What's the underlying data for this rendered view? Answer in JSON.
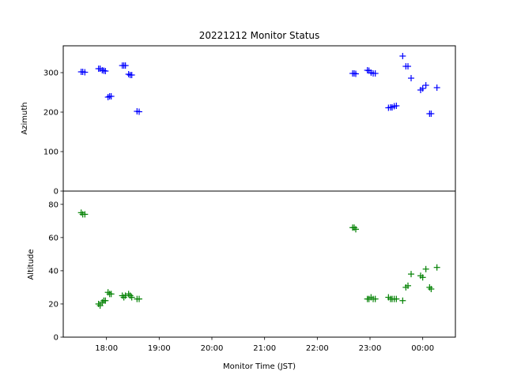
{
  "chart_data": {
    "type": "scatter",
    "title": "20221212 Monitor Status",
    "xlabel": "Monitor Time (JST)",
    "x_tick_labels": [
      "18:00",
      "19:00",
      "20:00",
      "21:00",
      "22:00",
      "23:00",
      "00:00"
    ],
    "x_unit": "hours since 17:00 JST (axis labels above)",
    "xlim": [
      0.18,
      7.62
    ],
    "marker": "+",
    "panels": [
      {
        "name": "azimuth",
        "ylabel": "Azimuth",
        "ylim": [
          0,
          368
        ],
        "yticks": [
          0,
          100,
          200,
          300
        ],
        "color": "#0000ff",
        "x": [
          0.52,
          0.55,
          0.59,
          0.85,
          0.88,
          0.92,
          0.95,
          0.98,
          1.03,
          1.06,
          1.09,
          1.3,
          1.33,
          1.36,
          1.42,
          1.45,
          1.48,
          1.58,
          1.62,
          5.67,
          5.7,
          5.73,
          5.95,
          5.98,
          6.02,
          6.06,
          6.1,
          6.35,
          6.39,
          6.42,
          6.46,
          6.5,
          6.62,
          6.68,
          6.72,
          6.78,
          6.96,
          7.0,
          7.06,
          7.13,
          7.16,
          7.27
        ],
        "y": [
          302,
          302,
          301,
          310,
          310,
          306,
          305,
          304,
          238,
          240,
          240,
          318,
          318,
          318,
          296,
          294,
          294,
          202,
          201,
          298,
          298,
          297,
          306,
          305,
          300,
          298,
          298,
          211,
          212,
          212,
          215,
          216,
          342,
          316,
          316,
          286,
          256,
          260,
          268,
          196,
          196,
          262
        ]
      },
      {
        "name": "altitude",
        "ylabel": "Altitude",
        "ylim": [
          0,
          88
        ],
        "yticks": [
          0,
          20,
          40,
          60,
          80
        ],
        "color": "#008000",
        "x": [
          0.52,
          0.55,
          0.59,
          0.85,
          0.88,
          0.92,
          0.95,
          0.98,
          1.03,
          1.06,
          1.09,
          1.3,
          1.33,
          1.36,
          1.42,
          1.45,
          1.48,
          1.58,
          1.62,
          5.67,
          5.7,
          5.73,
          5.95,
          5.98,
          6.02,
          6.06,
          6.1,
          6.35,
          6.39,
          6.42,
          6.46,
          6.5,
          6.62,
          6.68,
          6.72,
          6.78,
          6.96,
          7.0,
          7.06,
          7.13,
          7.16,
          7.27
        ],
        "y": [
          75,
          74,
          74,
          20,
          19,
          21,
          22,
          22,
          27,
          26,
          26,
          25,
          24,
          25,
          26,
          25,
          24,
          23,
          23,
          66,
          66,
          65,
          23,
          23,
          24,
          23,
          23,
          24,
          23,
          23,
          23,
          23,
          22,
          30,
          31,
          38,
          37,
          36,
          41,
          30,
          29,
          42
        ]
      }
    ]
  }
}
